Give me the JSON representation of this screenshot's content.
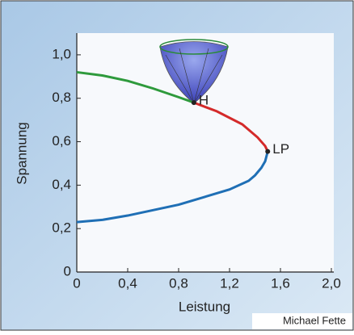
{
  "chart_data": {
    "type": "line",
    "xlabel": "Leistung",
    "ylabel": "Spannung",
    "credit": "Michael Fette",
    "xlim": [
      0,
      2.0
    ],
    "ylim": [
      0,
      1.1
    ],
    "xticks": [
      0,
      {
        "value": 0.4,
        "label": "0,4"
      },
      {
        "value": 0.8,
        "label": "0,8"
      },
      {
        "value": 1.2,
        "label": "1,2"
      },
      {
        "value": 1.6,
        "label": "1,6"
      },
      {
        "value": 2.0,
        "label": "2,0"
      }
    ],
    "yticks": [
      0,
      {
        "value": 0.2,
        "label": "0,2"
      },
      {
        "value": 0.4,
        "label": "0,4"
      },
      {
        "value": 0.6,
        "label": "0,6"
      },
      {
        "value": 0.8,
        "label": "0,8"
      },
      {
        "value": 1.0,
        "label": "1,0"
      }
    ],
    "series": [
      {
        "color": "#2e9a3c",
        "x": [
          0,
          0.2,
          0.4,
          0.6,
          0.8,
          0.92
        ],
        "y": [
          0.92,
          0.905,
          0.88,
          0.845,
          0.805,
          0.78
        ]
      },
      {
        "color": "#d42a2a",
        "x": [
          0.92,
          1.1,
          1.3,
          1.42,
          1.48,
          1.5
        ],
        "y": [
          0.78,
          0.74,
          0.68,
          0.62,
          0.58,
          0.555
        ]
      },
      {
        "color": "#1f6fb5",
        "x": [
          1.5,
          1.48,
          1.45,
          1.4,
          1.35,
          1.2,
          1.0,
          0.8,
          0.6,
          0.4,
          0.2,
          0
        ],
        "y": [
          0.555,
          0.51,
          0.48,
          0.445,
          0.42,
          0.38,
          0.345,
          0.31,
          0.285,
          0.26,
          0.24,
          0.23
        ]
      }
    ],
    "points": [
      {
        "label": "H",
        "x": 0.92,
        "y": 0.78
      },
      {
        "label": "LP",
        "x": 1.5,
        "y": 0.555
      }
    ]
  }
}
